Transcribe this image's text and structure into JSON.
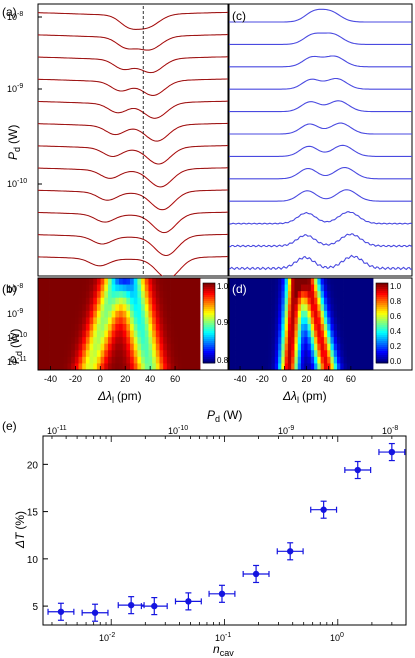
{
  "panels": {
    "a": {
      "label": "(a)",
      "ylabel_sym": "P",
      "ylabel_sub": "d",
      "ylabel_unit": "(W)",
      "yticks": [
        {
          "base": "10",
          "exp": "-8"
        },
        {
          "base": "10",
          "exp": "-9"
        },
        {
          "base": "10",
          "exp": "-10"
        }
      ]
    },
    "b": {
      "label": "(b)",
      "ylabel_sym": "P",
      "ylabel_sub": "d",
      "ylabel_unit": "(W)",
      "yticks": [
        {
          "base": "10",
          "exp": "-8"
        },
        {
          "base": "10",
          "exp": "-9"
        },
        {
          "base": "10",
          "exp": "-10"
        },
        {
          "base": "10",
          "exp": "-11"
        }
      ],
      "xticks": [
        "-40",
        "-20",
        "0",
        "20",
        "40",
        "60"
      ],
      "xlabel_sym": "Δλ",
      "xlabel_sub": "l",
      "xlabel_unit": "(pm)",
      "cbar_ticks": [
        "1.0",
        "0.9",
        "0.8"
      ]
    },
    "c": {
      "label": "(c)"
    },
    "d": {
      "label": "(d)",
      "xticks": [
        "-40",
        "-20",
        "0",
        "20",
        "40",
        "60"
      ],
      "xlabel_sym": "Δλ",
      "xlabel_sub": "l",
      "xlabel_unit": "(pm)",
      "cbar_ticks": [
        "1.0",
        "0.8",
        "0.6",
        "0.4",
        "0.2",
        "0.0"
      ]
    },
    "e": {
      "label": "(e)",
      "top_xlabel_sym": "P",
      "top_xlabel_sub": "d",
      "top_xlabel_unit": "(W)",
      "top_xticks": [
        {
          "base": "10",
          "exp": "-11"
        },
        {
          "base": "10",
          "exp": "-10"
        },
        {
          "base": "10",
          "exp": "-9"
        },
        {
          "base": "10",
          "exp": "-8"
        }
      ],
      "bottom_xticks": [
        {
          "base": "10",
          "exp": "-2"
        },
        {
          "base": "10",
          "exp": "-1"
        },
        {
          "base": "10",
          "exp": "0"
        }
      ],
      "xlabel_sym": "n",
      "xlabel_sub": "cav",
      "ylabel_sym": "ΔT",
      "ylabel_unit": "(%)",
      "yticks": [
        "5",
        "10",
        "15",
        "20"
      ]
    }
  },
  "chart_data": [
    {
      "type": "line",
      "panel": "a",
      "x_range": [
        -50,
        80
      ],
      "n_traces": 12,
      "color": "#e02020",
      "fit_color": "#000000",
      "dashed_marker_x": 22,
      "dip1_center": [
        12,
        8
      ],
      "dip2_center": [
        25,
        40
      ],
      "note_shape": "transmission dips per power level, top to bottom decreasing power"
    },
    {
      "type": "line",
      "panel": "c",
      "x_range": [
        -50,
        80
      ],
      "n_traces": 12,
      "color": "#4a4ae0",
      "fit_color": "#000080"
    },
    {
      "type": "heatmap",
      "panel": "b",
      "x_range": [
        -50,
        80
      ],
      "y_levels": 14,
      "value_range": [
        0.8,
        1.0
      ]
    },
    {
      "type": "heatmap",
      "panel": "d",
      "x_range": [
        -50,
        80
      ],
      "y_levels": 14,
      "value_range": [
        0.0,
        1.0
      ]
    },
    {
      "type": "scatter",
      "panel": "e",
      "x_log": true,
      "xlim": [
        0.0025,
        4
      ],
      "ylim": [
        3,
        23
      ],
      "color": "#1414e0",
      "points": [
        {
          "x": 0.0036,
          "y": 4.4,
          "xerr": 1.3,
          "yerr": 0.9
        },
        {
          "x": 0.0072,
          "y": 4.3,
          "xerr": 1.3,
          "yerr": 0.9
        },
        {
          "x": 0.015,
          "y": 5.1,
          "xerr": 1.3,
          "yerr": 0.9
        },
        {
          "x": 0.024,
          "y": 5.0,
          "xerr": 1.3,
          "yerr": 0.9
        },
        {
          "x": 0.048,
          "y": 5.5,
          "xerr": 1.3,
          "yerr": 0.9
        },
        {
          "x": 0.095,
          "y": 6.3,
          "xerr": 1.3,
          "yerr": 0.9
        },
        {
          "x": 0.19,
          "y": 8.4,
          "xerr": 1.3,
          "yerr": 0.9
        },
        {
          "x": 0.38,
          "y": 10.8,
          "xerr": 1.3,
          "yerr": 0.9
        },
        {
          "x": 0.75,
          "y": 15.2,
          "xerr": 1.3,
          "yerr": 0.9
        },
        {
          "x": 1.5,
          "y": 19.4,
          "xerr": 1.3,
          "yerr": 0.9
        },
        {
          "x": 3.0,
          "y": 21.3,
          "xerr": 1.3,
          "yerr": 0.9
        }
      ]
    }
  ]
}
